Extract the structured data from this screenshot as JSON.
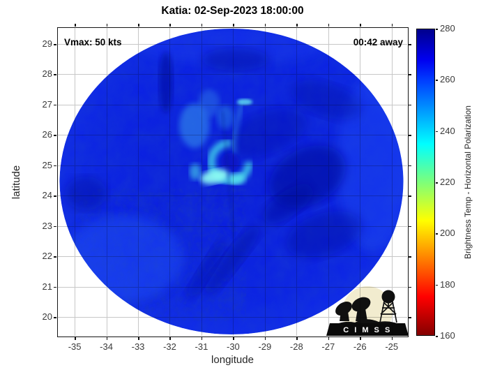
{
  "figure": {
    "title": "Katia: 02-Sep-2023 18:00:00",
    "vmax_label": "Vmax: 50 kts",
    "countdown_label": "00:42 away",
    "xlabel": "longitude",
    "ylabel": "latitude",
    "colorbar_label": "Brightness Temp - Horizontal Polarization",
    "logo_text": "C I M S S"
  },
  "chart_data": {
    "type": "heatmap",
    "title": "Katia: 02-Sep-2023 18:00:00",
    "xlabel": "longitude",
    "ylabel": "latitude",
    "x_ticks": [
      -35,
      -34,
      -33,
      -32,
      -31,
      -30,
      -29,
      -28,
      -27,
      -26,
      -25
    ],
    "y_ticks": [
      20,
      21,
      22,
      23,
      24,
      25,
      26,
      27,
      28,
      29
    ],
    "xlim": [
      -35.5,
      -24.5
    ],
    "ylim": [
      19.4,
      29.5
    ],
    "grid": true,
    "annotations": [
      "Vmax: 50 kts",
      "00:42 away"
    ],
    "swath": {
      "shape": "circular",
      "center_lon": -30.0,
      "center_lat": 24.5,
      "radius_deg": 5.4,
      "background_temp_K_approx": 262
    },
    "eye_feature": {
      "lon": -30.2,
      "lat": 25.3,
      "temp_K_approx": 235,
      "description": "cyan hook-shaped eyewall convection with darker eye center"
    },
    "colorbar": {
      "label": "Brightness Temp - Horizontal Polarization",
      "min": 160,
      "max": 280,
      "ticks": [
        160,
        180,
        200,
        220,
        240,
        260,
        280
      ],
      "colormap": "jet (280 K dark blue at top, 160 K dark red at bottom)"
    }
  }
}
